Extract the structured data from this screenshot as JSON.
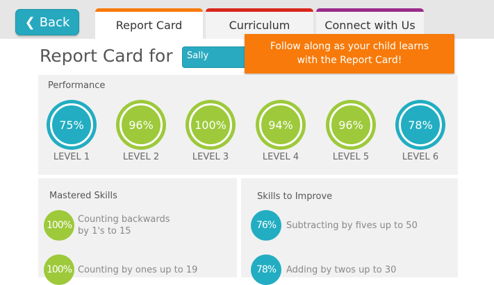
{
  "header": {
    "back_label": "Back",
    "tabs": [
      {
        "label": "Report Card",
        "color": "#f77a0a",
        "active": true
      },
      {
        "label": "Curriculum",
        "color": "#d9261c"
      },
      {
        "label": "Connect with Us",
        "color": "#9c2a8a"
      }
    ]
  },
  "title": "Report Card for",
  "student": "Sally",
  "callout": {
    "line1": "Follow along as your child learns",
    "line2": "with the Report Card!"
  },
  "performance": {
    "title": "Performance",
    "levels": [
      {
        "value": "75%",
        "label": "LEVEL 1",
        "color": "#22adc2"
      },
      {
        "value": "96%",
        "label": "LEVEL 2",
        "color": "#9dc93b"
      },
      {
        "value": "100%",
        "label": "LEVEL 3",
        "color": "#9dc93b"
      },
      {
        "value": "94%",
        "label": "LEVEL 4",
        "color": "#9dc93b"
      },
      {
        "value": "96%",
        "label": "LEVEL 5",
        "color": "#9dc93b"
      },
      {
        "value": "78%",
        "label": "LEVEL 6",
        "color": "#22adc2"
      }
    ]
  },
  "mastered": {
    "title": "Mastered Skills",
    "items": [
      {
        "value": "100%",
        "line1": "Counting backwards",
        "line2": "by 1's to 15"
      },
      {
        "value": "100%",
        "line1": "Counting by ones up to 19",
        "line2": ""
      }
    ]
  },
  "improve": {
    "title": "Skills to Improve",
    "items": [
      {
        "value": "76%",
        "line1": "Subtracting by fives up to 50"
      },
      {
        "value": "78%",
        "line1": "Adding by twos up to 30"
      }
    ]
  },
  "colors": {
    "teal": "#22adc2",
    "green": "#9dc93b",
    "orange": "#f77a0a"
  }
}
